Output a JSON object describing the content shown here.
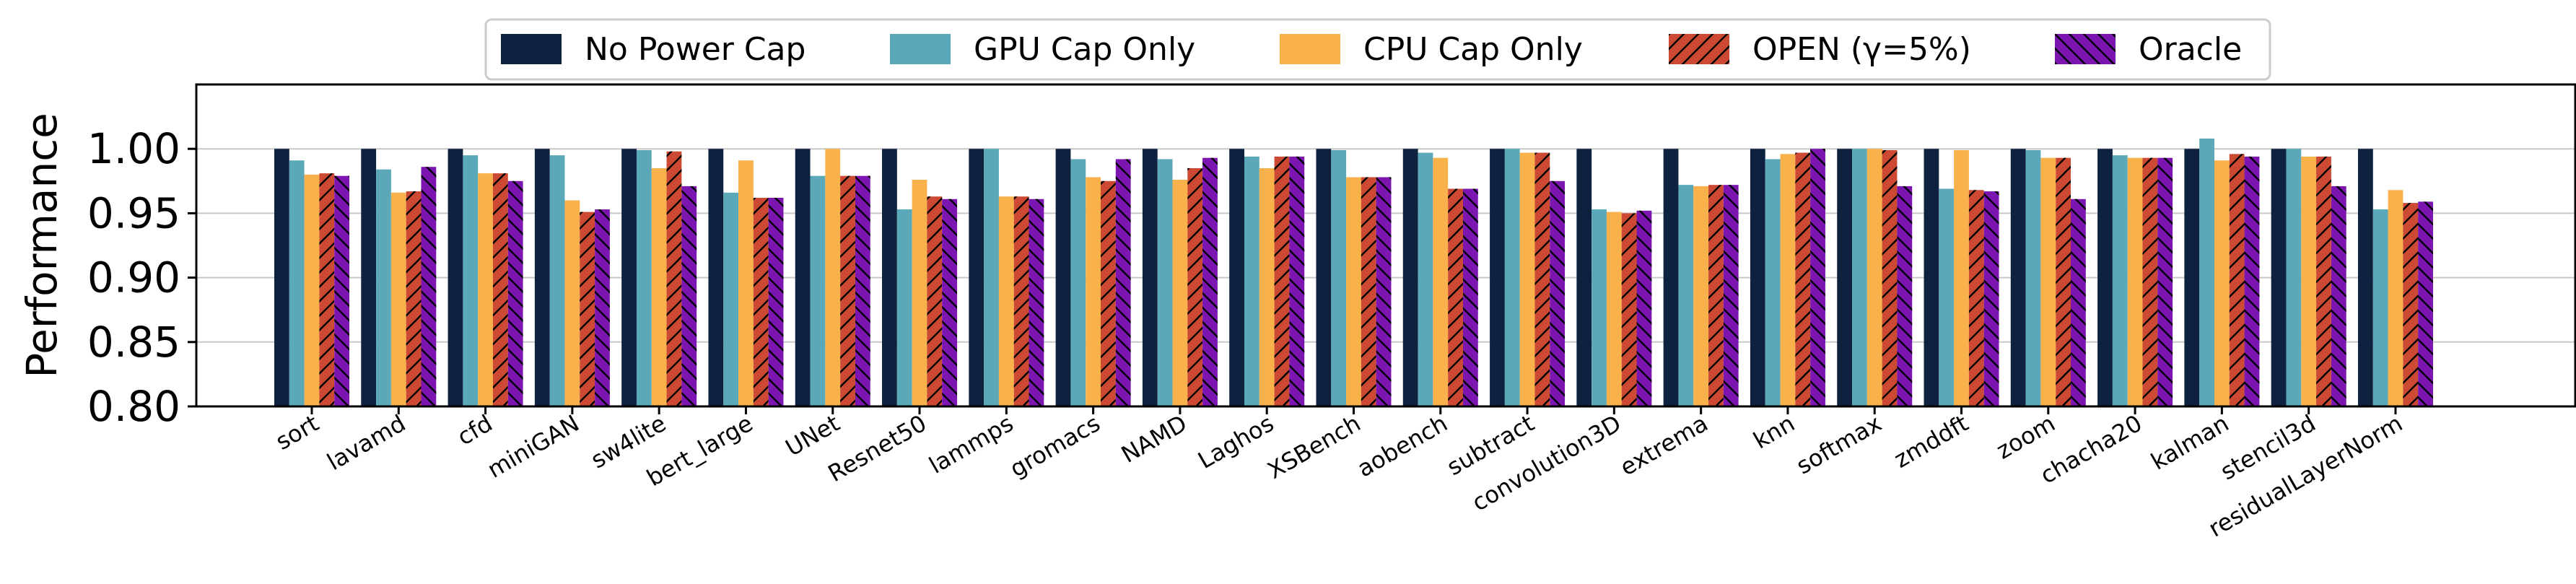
{
  "chart_data": {
    "type": "bar",
    "title": "",
    "xlabel": "",
    "ylabel": "Performance",
    "ylim": [
      0.8,
      1.05
    ],
    "yticks": [
      0.8,
      0.85,
      0.9,
      0.95,
      1.0
    ],
    "ytick_labels": [
      "0.80",
      "0.85",
      "0.90",
      "0.95",
      "1.00"
    ],
    "grid": "horizontal",
    "legend_position": "top-center",
    "categories": [
      "sort",
      "lavamd",
      "cfd",
      "miniGAN",
      "sw4lite",
      "bert_large",
      "UNet",
      "Resnet50",
      "lammps",
      "gromacs",
      "NAMD",
      "Laghos",
      "XSBench",
      "aobench",
      "subtract",
      "convolution3D",
      "extrema",
      "knn",
      "softmax",
      "zmddft",
      "zoom",
      "chacha20",
      "kalman",
      "stencil3d",
      "residualLayerNorm"
    ],
    "series": [
      {
        "name": "No Power Cap",
        "color": "#0e2240",
        "hatch": "none",
        "values": [
          1.0,
          1.0,
          1.0,
          1.0,
          1.0,
          1.0,
          1.0,
          1.0,
          1.0,
          1.0,
          1.0,
          1.0,
          1.0,
          1.0,
          1.0,
          1.0,
          1.0,
          1.0,
          1.0,
          1.0,
          1.0,
          1.0,
          1.0,
          1.0,
          1.0
        ]
      },
      {
        "name": "GPU Cap Only",
        "color": "#5ba8b8",
        "hatch": "none",
        "values": [
          0.991,
          0.984,
          0.995,
          0.995,
          0.999,
          0.966,
          0.979,
          0.953,
          1.0,
          0.992,
          0.992,
          0.994,
          0.999,
          0.997,
          1.0,
          0.953,
          0.972,
          0.992,
          1.0,
          0.969,
          0.999,
          0.995,
          1.008,
          1.0,
          0.953
        ]
      },
      {
        "name": "CPU Cap Only",
        "color": "#f9b14b",
        "hatch": "none",
        "values": [
          0.98,
          0.966,
          0.981,
          0.96,
          0.985,
          0.991,
          1.0,
          0.976,
          0.963,
          0.978,
          0.976,
          0.985,
          0.978,
          0.993,
          0.997,
          0.951,
          0.971,
          0.996,
          1.0,
          0.999,
          0.993,
          0.993,
          0.991,
          0.994,
          0.968
        ]
      },
      {
        "name": "OPEN (γ=5%)",
        "color": "#cc4a33",
        "hatch": "/",
        "values": [
          0.981,
          0.967,
          0.981,
          0.951,
          0.998,
          0.962,
          0.979,
          0.963,
          0.963,
          0.975,
          0.985,
          0.994,
          0.978,
          0.969,
          0.997,
          0.95,
          0.972,
          0.997,
          0.999,
          0.968,
          0.993,
          0.993,
          0.996,
          0.994,
          0.958
        ]
      },
      {
        "name": "Oracle",
        "color": "#7b16b0",
        "hatch": "\\",
        "values": [
          0.979,
          0.986,
          0.975,
          0.953,
          0.971,
          0.962,
          0.979,
          0.961,
          0.961,
          0.992,
          0.993,
          0.994,
          0.978,
          0.969,
          0.975,
          0.952,
          0.972,
          1.0,
          0.971,
          0.967,
          0.961,
          0.993,
          0.994,
          0.971,
          0.959
        ]
      }
    ]
  }
}
